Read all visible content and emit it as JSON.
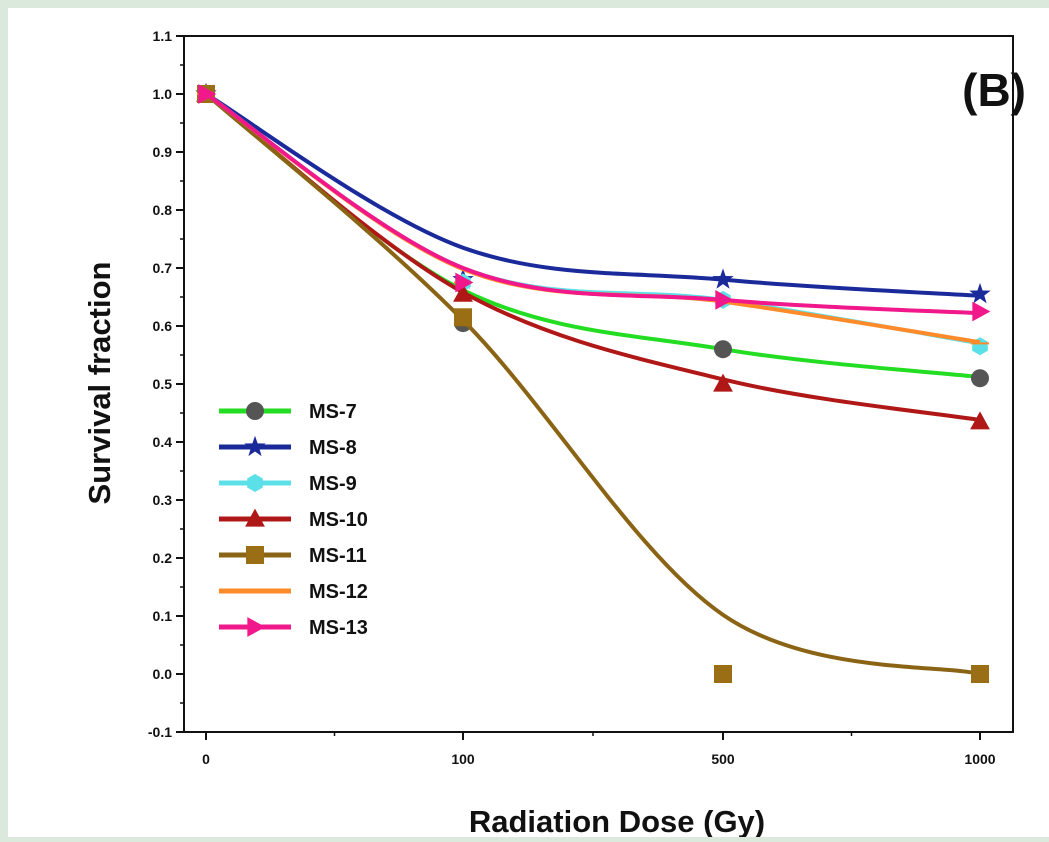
{
  "chart_data": {
    "type": "line",
    "panel_label": "(B)",
    "xlabel": "Radiation Dose (Gy)",
    "ylabel": "Survival fraction",
    "categories": [
      "0",
      "100",
      "500",
      "1000"
    ],
    "ylim": [
      -0.1,
      1.1
    ],
    "yticks": [
      "-0.1",
      "0.0",
      "0.1",
      "0.2",
      "0.3",
      "0.4",
      "0.5",
      "0.6",
      "0.7",
      "0.8",
      "0.9",
      "1.0",
      "1.1"
    ],
    "legend_position": "lower-left",
    "series": [
      {
        "name": "MS-7",
        "color": "#22dd22",
        "marker": "circle",
        "marker_color": "#555555",
        "values": [
          1.0,
          0.605,
          0.56,
          0.51
        ],
        "curve": [
          1.0,
          0.662,
          0.56,
          0.512
        ]
      },
      {
        "name": "MS-8",
        "color": "#1a2a9a",
        "marker": "star",
        "marker_color": "#1a2a9a",
        "values": [
          1.0,
          0.68,
          0.68,
          0.655
        ],
        "curve": [
          1.0,
          0.735,
          0.68,
          0.652
        ]
      },
      {
        "name": "MS-9",
        "color": "#5ce0e8",
        "marker": "hexagon",
        "marker_color": "#5ce0e8",
        "values": [
          1.0,
          0.675,
          0.645,
          0.565
        ],
        "curve": [
          1.0,
          0.7,
          0.645,
          0.57
        ]
      },
      {
        "name": "MS-10",
        "color": "#b01818",
        "marker": "triangle",
        "marker_color": "#b01818",
        "values": [
          1.0,
          0.655,
          0.5,
          0.435
        ],
        "curve": [
          1.0,
          0.658,
          0.508,
          0.438
        ]
      },
      {
        "name": "MS-11",
        "color": "#8a6414",
        "marker": "square",
        "marker_color": "#9a6e14",
        "values": [
          1.0,
          0.615,
          0.0,
          0.0
        ],
        "curve": [
          1.0,
          0.61,
          0.102,
          0.0
        ]
      },
      {
        "name": "MS-12",
        "color": "#ff8a2a",
        "marker": "line",
        "marker_color": "#ff8a2a",
        "values": [
          1.0,
          0.675,
          0.645,
          0.57
        ],
        "curve": [
          1.0,
          0.698,
          0.642,
          0.572
        ]
      },
      {
        "name": "MS-13",
        "color": "#f0188a",
        "marker": "triangle-right",
        "marker_color": "#f0188a",
        "values": [
          1.0,
          0.675,
          0.645,
          0.625
        ],
        "curve": [
          1.0,
          0.7,
          0.645,
          0.622
        ]
      }
    ]
  }
}
